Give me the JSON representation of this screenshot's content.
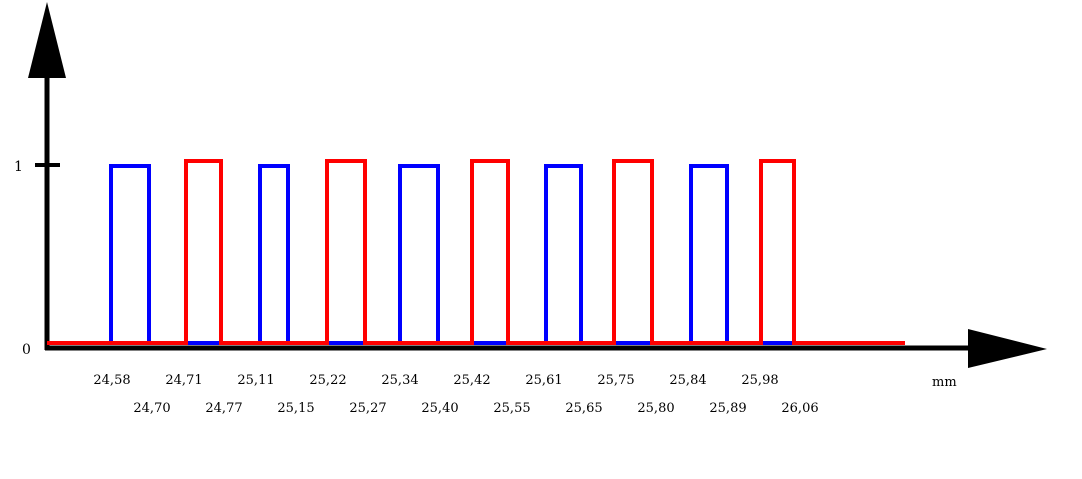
{
  "chart_data": {
    "type": "line",
    "title": "",
    "xlabel": "",
    "ylabel": "",
    "unit": "mm",
    "y_tick_labels": [
      "0",
      "1"
    ],
    "series": [
      {
        "color": "#0000ff",
        "pulses": [
          [
            24.58,
            24.7
          ],
          [
            25.11,
            25.15
          ],
          [
            25.34,
            25.4
          ],
          [
            25.61,
            25.65
          ],
          [
            25.84,
            25.89
          ]
        ]
      },
      {
        "color": "#ff0000",
        "pulses": [
          [
            24.71,
            24.77
          ],
          [
            25.22,
            25.27
          ],
          [
            25.42,
            25.55
          ],
          [
            25.75,
            25.8
          ],
          [
            25.98,
            26.06
          ]
        ]
      }
    ],
    "tick_labels_upper": [
      "24,58",
      "24,71",
      "25,11",
      "25,22",
      "25,34",
      "25,42",
      "25,61",
      "25,75",
      "25,84",
      "25,98"
    ],
    "tick_labels_lower": [
      "24,70",
      "24,77",
      "25,15",
      "25,27",
      "25,40",
      "25,55",
      "25,65",
      "25,80",
      "25,89",
      "26,06"
    ]
  }
}
